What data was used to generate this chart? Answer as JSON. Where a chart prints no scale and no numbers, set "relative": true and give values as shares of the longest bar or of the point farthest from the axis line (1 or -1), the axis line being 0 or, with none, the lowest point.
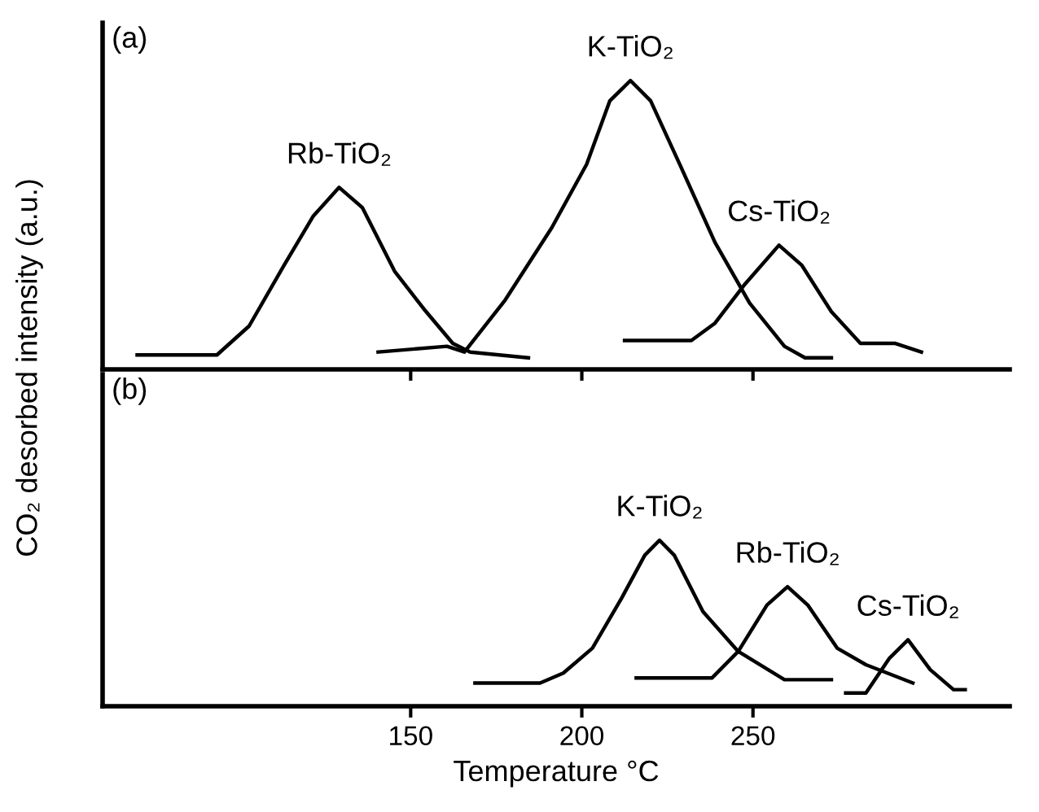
{
  "chart_data": [
    {
      "type": "line",
      "relative": true,
      "ylabel": "CO₂ desorbed intensity (a.u.)",
      "xlim": [
        60,
        325
      ],
      "xticks": [
        150,
        200,
        250
      ],
      "tick_labels": false,
      "annotations": [
        "(a)",
        "Rb-TiO₂",
        "K-TiO₂",
        "Cs-TiO₂"
      ],
      "series": [
        {
          "color": "#000000",
          "x": [
            70.1,
            93.4,
            102.8,
            113,
            121.5,
            129.1,
            135.9,
            145.3,
            153.8,
            162.3,
            167.4,
            184.4
          ],
          "values": [
            0.05,
            0.05,
            0.15,
            0.36,
            0.53,
            0.63,
            0.56,
            0.34,
            0.21,
            0.09,
            0.06,
            0.04
          ]
        },
        {
          "color": "#000000",
          "x": [
            140.5,
            160.6,
            165.7,
            177.6,
            191.2,
            201.4,
            208.2,
            214.2,
            220.1,
            228.6,
            238.9,
            249,
            259.2,
            265.2,
            272.9
          ],
          "values": [
            0.06,
            0.08,
            0.06,
            0.24,
            0.49,
            0.71,
            0.93,
            1.0,
            0.93,
            0.71,
            0.44,
            0.23,
            0.08,
            0.04,
            0.04
          ]
        },
        {
          "color": "#000000",
          "x": [
            212.5,
            232.0,
            238.9,
            247.3,
            257.6,
            264.3,
            272.9,
            281.4,
            291.6,
            299.2
          ],
          "values": [
            0.1,
            0.1,
            0.16,
            0.29,
            0.43,
            0.36,
            0.2,
            0.09,
            0.09,
            0.06
          ]
        }
      ]
    },
    {
      "type": "line",
      "relative": true,
      "xlabel": "Temperature °C",
      "xlim": [
        60,
        325
      ],
      "xticks": [
        150,
        200,
        250
      ],
      "tick_labels": "x",
      "annotations": [
        "(b)",
        "K-TiO₂",
        "Rb-TiO₂",
        "Cs-TiO₂"
      ],
      "series": [
        {
          "color": "#000000",
          "x": [
            168.8,
            187.8,
            194.6,
            203.1,
            211.6,
            218.4,
            222.7,
            227.0,
            235.4,
            245.7,
            259.2,
            272.9
          ],
          "values": [
            0.14,
            0.14,
            0.2,
            0.35,
            0.65,
            0.91,
            1.0,
            0.91,
            0.57,
            0.33,
            0.16,
            0.16
          ]
        },
        {
          "color": "#000000",
          "x": [
            215.9,
            238.0,
            245.7,
            254.1,
            260.1,
            266.0,
            274.6,
            283.0,
            296.7
          ],
          "values": [
            0.17,
            0.17,
            0.33,
            0.61,
            0.72,
            0.61,
            0.35,
            0.25,
            0.14
          ]
        },
        {
          "color": "#000000",
          "x": [
            277.1,
            283.0,
            289.9,
            295.3,
            301.8,
            308.6,
            312.0
          ],
          "values": [
            0.08,
            0.08,
            0.29,
            0.4,
            0.22,
            0.1,
            0.1
          ]
        }
      ]
    }
  ]
}
